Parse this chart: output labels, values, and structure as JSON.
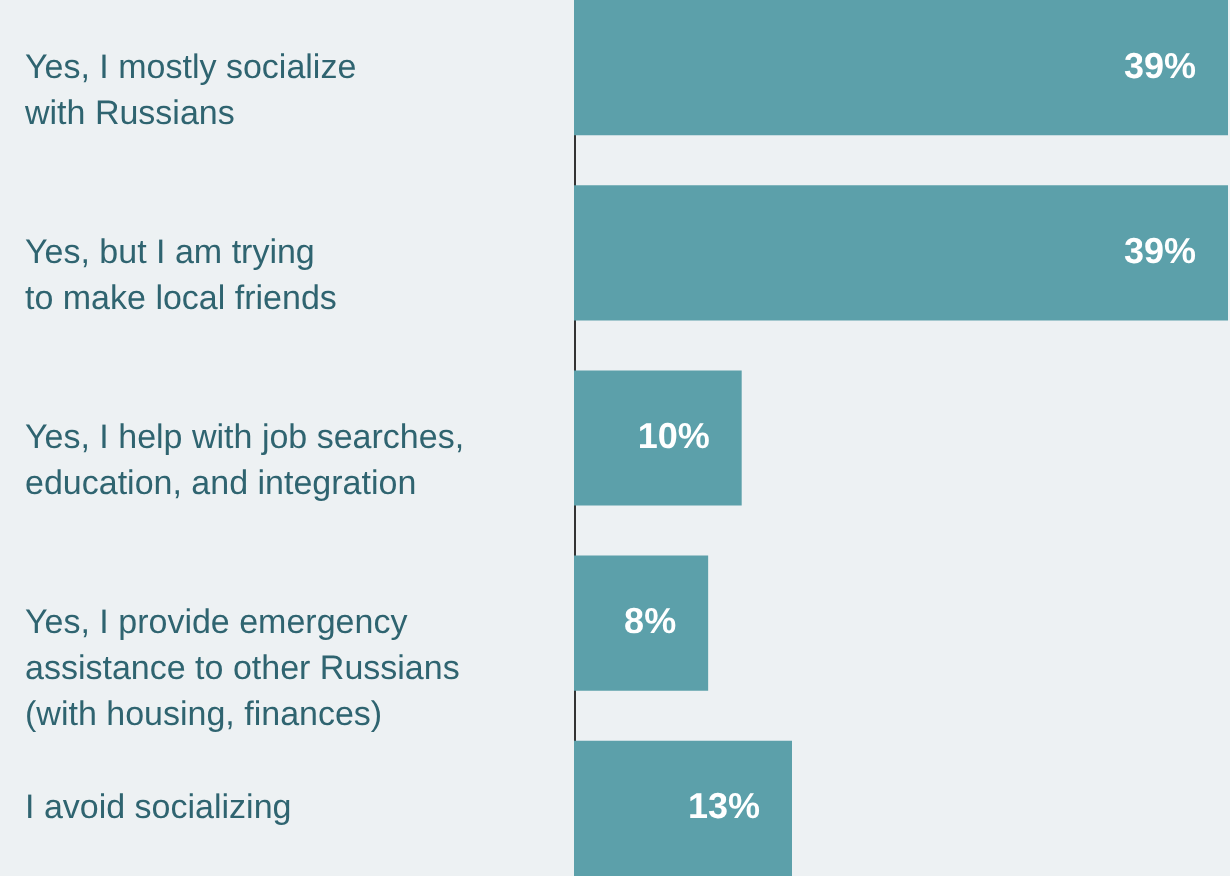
{
  "chart_data": {
    "type": "bar",
    "orientation": "horizontal",
    "categories": [
      "Yes, I mostly socialize\nwith Russians",
      "Yes, but I am trying\nto make local friends",
      "Yes, I help with job searches,\neducation, and integration",
      "Yes, I provide emergency\nassistance to other Russians\n(with housing, finances)",
      "I avoid socializing"
    ],
    "values": [
      39,
      39,
      10,
      8,
      13
    ],
    "value_labels": [
      "39%",
      "39%",
      "10%",
      "8%",
      "13%"
    ],
    "color": "#5ca0aa",
    "xlim": [
      0,
      39
    ],
    "tick_labels": "y",
    "grid": false
  }
}
